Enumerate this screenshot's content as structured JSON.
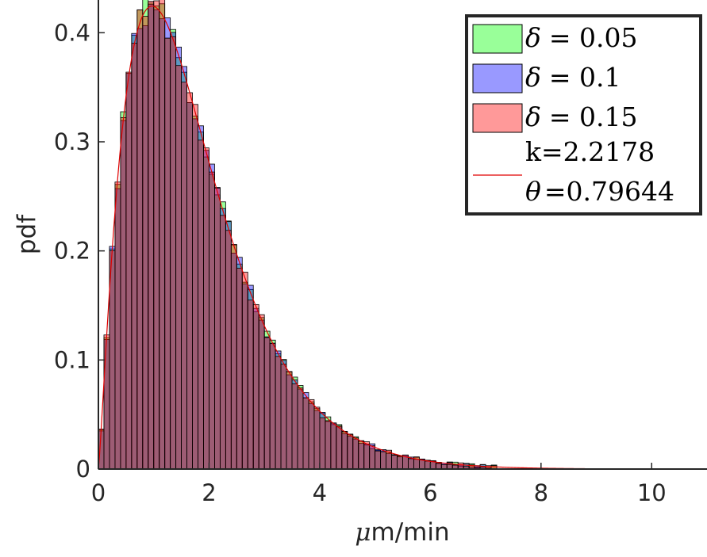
{
  "chart_data": {
    "type": "histogram",
    "xlabel_mu": "μ",
    "xlabel_rest": "m/min",
    "ylabel": "pdf",
    "xlim": [
      0,
      11
    ],
    "ylim": [
      0,
      0.43
    ],
    "xticks": [
      "0",
      "2",
      "4",
      "6",
      "8",
      "10"
    ],
    "yticks": [
      "0",
      "0.1",
      "0.2",
      "0.3",
      "0.4"
    ],
    "bin_width": 0.1,
    "series": [
      {
        "name": "δ = 0.05",
        "symbol": "δ",
        "eq": "= 0.05",
        "color": "#00ff00"
      },
      {
        "name": "δ = 0.1",
        "symbol": "δ",
        "eq": "= 0.1",
        "color": "#0000ff"
      },
      {
        "name": "δ = 0.15",
        "symbol": "δ",
        "eq": "= 0.15",
        "color": "#ff0000"
      }
    ],
    "fit": {
      "type": "gamma",
      "k": 2.2178,
      "theta": 0.79644,
      "k_label": "k=2.2178",
      "theta_symbol": "θ",
      "theta_eq": "=0.79644",
      "color": "#e00000"
    },
    "legend_position": "top-right",
    "grid": false
  }
}
